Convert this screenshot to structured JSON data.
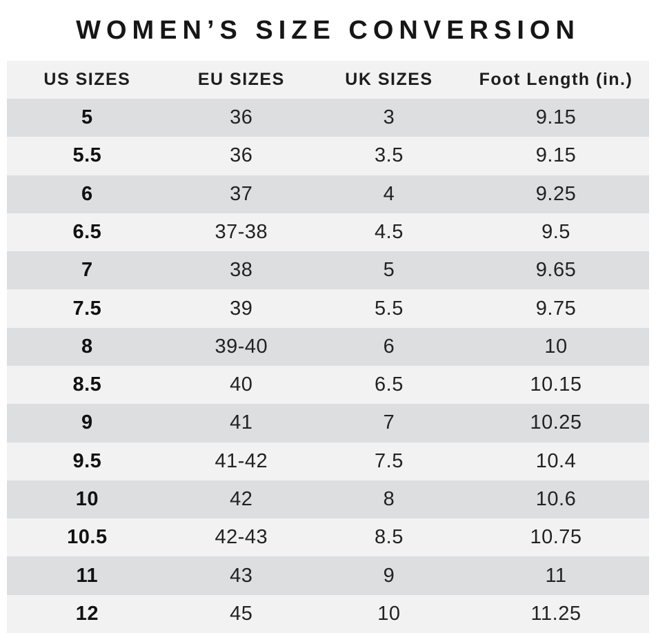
{
  "title": "WOMEN’S SIZE CONVERSION",
  "colors": {
    "page_background": "#ffffff",
    "header_row_bg": "#f2f2f3",
    "row_stripe_dark": "#dcdee0",
    "row_stripe_light": "#f2f2f3",
    "text": "#1e1e1e"
  },
  "chart_data": {
    "type": "table",
    "title": "WOMEN’S SIZE CONVERSION",
    "columns": [
      "US SIZES",
      "EU SIZES",
      "UK SIZES",
      "Foot Length (in.)"
    ],
    "rows": [
      [
        "5",
        "36",
        "3",
        "9.15"
      ],
      [
        "5.5",
        "36",
        "3.5",
        "9.15"
      ],
      [
        "6",
        "37",
        "4",
        "9.25"
      ],
      [
        "6.5",
        "37-38",
        "4.5",
        "9.5"
      ],
      [
        "7",
        "38",
        "5",
        "9.65"
      ],
      [
        "7.5",
        "39",
        "5.5",
        "9.75"
      ],
      [
        "8",
        "39-40",
        "6",
        "10"
      ],
      [
        "8.5",
        "40",
        "6.5",
        "10.15"
      ],
      [
        "9",
        "41",
        "7",
        "10.25"
      ],
      [
        "9.5",
        "41-42",
        "7.5",
        "10.4"
      ],
      [
        "10",
        "42",
        "8",
        "10.6"
      ],
      [
        "10.5",
        "42-43",
        "8.5",
        "10.75"
      ],
      [
        "11",
        "43",
        "9",
        "11"
      ],
      [
        "12",
        "45",
        "10",
        "11.25"
      ]
    ],
    "layout": {
      "stripe_pattern": "first data row dark, alternating",
      "first_column_bold": true,
      "all_cells_centered": true
    }
  }
}
